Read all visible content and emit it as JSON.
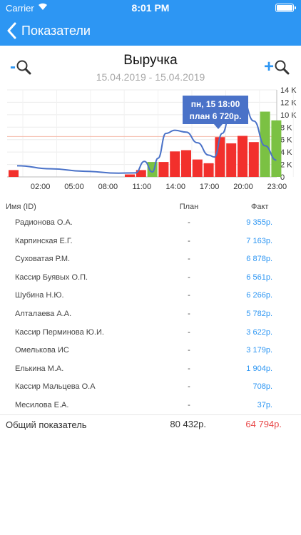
{
  "status_bar": {
    "carrier": "Carrier",
    "time": "8:01 PM"
  },
  "nav": {
    "back_label": "Показатели"
  },
  "chart_header": {
    "title": "Выручка",
    "date_range": "15.04.2019 - 15.04.2019"
  },
  "zoom": {
    "out_sign": "-",
    "in_sign": "+"
  },
  "chart_data": {
    "type": "bar",
    "x_ticks": [
      "02:00",
      "05:00",
      "08:00",
      "11:00",
      "14:00",
      "17:00",
      "20:00",
      "23:00"
    ],
    "y_ticks": [
      "0",
      "2 K",
      "4 K",
      "6 K",
      "8 K",
      "10 K",
      "12 K",
      "14 K"
    ],
    "ylim": [
      0,
      14000
    ],
    "grid": true,
    "colors": {
      "red": "#f2302c",
      "green": "#7bc143",
      "line": "#4a72c8",
      "tooltip": "#4a72c8",
      "ref_line": "#f5b8a8"
    },
    "reference_line": 6500,
    "series": [
      {
        "type": "bar",
        "x_hours": [
          0,
          10,
          11,
          12,
          13,
          14,
          15,
          16,
          17,
          18,
          19,
          20,
          21,
          22,
          23
        ],
        "values": [
          1100,
          400,
          1100,
          2400,
          2400,
          4100,
          4300,
          2800,
          2200,
          6400,
          5400,
          6600,
          5600,
          10500,
          9100
        ],
        "colors": [
          "red",
          "red",
          "red",
          "green",
          "red",
          "red",
          "red",
          "red",
          "red",
          "red",
          "red",
          "red",
          "red",
          "green",
          "green"
        ]
      },
      {
        "type": "line",
        "x_hours": [
          0,
          3,
          6,
          9,
          10.5,
          11.3,
          12,
          12.5,
          13.2,
          14,
          15,
          16,
          17,
          17.5,
          18.2,
          19,
          20,
          21,
          22,
          23
        ],
        "values": [
          1800,
          1300,
          900,
          600,
          650,
          2500,
          800,
          3000,
          7000,
          7500,
          7200,
          5500,
          3500,
          3200,
          7000,
          11000,
          12500,
          9000,
          5000,
          2700
        ]
      }
    ],
    "tooltip": {
      "line1": "пн, 15 18:00",
      "line2": "план 6 720р."
    }
  },
  "table": {
    "headers": {
      "name": "Имя (ID)",
      "plan": "План",
      "fact": "Факт"
    },
    "rows": [
      {
        "name": "Радионова О.А.",
        "plan": "-",
        "fact": "9 355р."
      },
      {
        "name": "Карпинская Е.Г.",
        "plan": "-",
        "fact": "7 163р."
      },
      {
        "name": "Суховатая Р.М.",
        "plan": "-",
        "fact": "6 878р."
      },
      {
        "name": "Кассир Буявых О.П.",
        "plan": "-",
        "fact": "6 561р."
      },
      {
        "name": "Шубина Н.Ю.",
        "plan": "-",
        "fact": "6 266р."
      },
      {
        "name": "Алталаева А.А.",
        "plan": "-",
        "fact": "5 782р."
      },
      {
        "name": "Кассир Перминова Ю.И.",
        "plan": "-",
        "fact": "3 622р."
      },
      {
        "name": "Омелькова ИС",
        "plan": "-",
        "fact": "3 179р."
      },
      {
        "name": "Елькина М.А.",
        "plan": "-",
        "fact": "1 904р."
      },
      {
        "name": "Кассир Мальцева О.А",
        "plan": "-",
        "fact": "708р."
      },
      {
        "name": "Месилова Е.А.",
        "plan": "-",
        "fact": "37р."
      }
    ],
    "total": {
      "label": "Общий показатель",
      "plan": "80 432р.",
      "fact": "64 794р."
    }
  }
}
